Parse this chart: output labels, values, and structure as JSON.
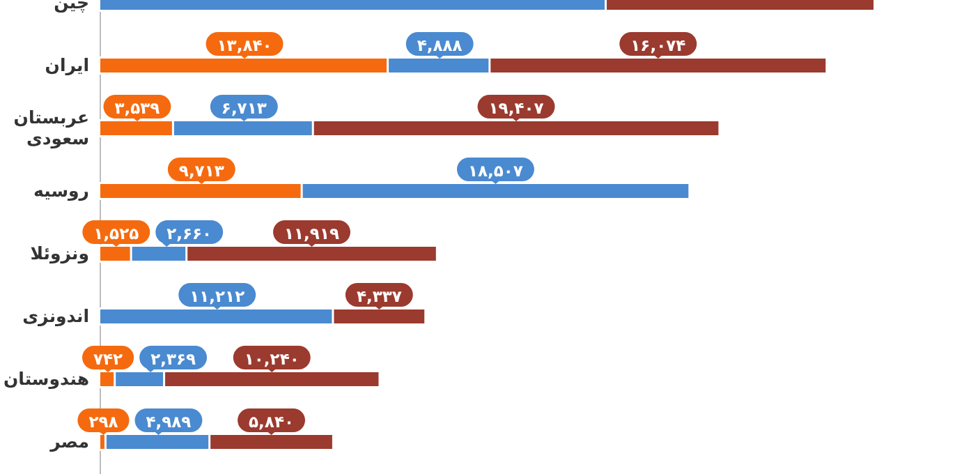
{
  "chart_data": {
    "type": "bar",
    "orientation": "horizontal",
    "stacked": true,
    "tick_labels": "y",
    "categories": [
      "چین",
      "ایران",
      "عربستان سعودی",
      "روسیه",
      "ونزوئلا",
      "اندونزی",
      "هندوستان",
      "مصر"
    ],
    "series": [
      {
        "color": "#f56a0f",
        "values": [
          null,
          13840,
          3539,
          9713,
          1525,
          null,
          742,
          298
        ],
        "value_labels": [
          null,
          "۱۳,۸۴۰",
          "۳,۵۳۹",
          "۹,۷۱۳",
          "۱,۵۲۵",
          null,
          "۷۴۲",
          "۲۹۸"
        ]
      },
      {
        "color": "#4a8ad0",
        "values": [
          24300,
          4888,
          6713,
          18507,
          2660,
          11212,
          2369,
          4989
        ],
        "value_labels": [
          null,
          "۴,۸۸۸",
          "۶,۷۱۳",
          "۱۸,۵۰۷",
          "۲,۶۶۰",
          "۱۱,۲۱۲",
          "۲,۳۶۹",
          "۴,۹۸۹"
        ]
      },
      {
        "color": "#9b3a2e",
        "values": [
          12800,
          16074,
          19407,
          null,
          11919,
          4337,
          10240,
          5840
        ],
        "value_labels": [
          null,
          "۱۶,۰۷۴",
          "۱۹,۴۰۷",
          null,
          "۱۱,۹۱۹",
          "۴,۳۳۷",
          "۱۰,۲۴۰",
          "۵,۸۴۰"
        ]
      }
    ]
  }
}
